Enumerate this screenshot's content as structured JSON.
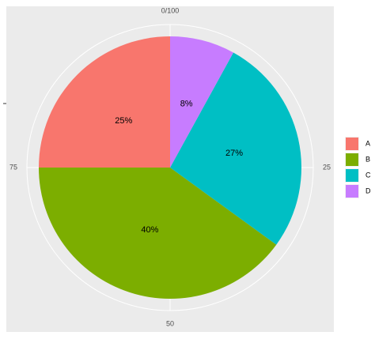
{
  "chart_data": {
    "type": "pie",
    "categories": [
      "A",
      "B",
      "C",
      "D"
    ],
    "values": [
      25,
      40,
      27,
      8
    ],
    "value_labels": [
      "25%",
      "40%",
      "27%",
      "8%"
    ],
    "colors": [
      "#F8766D",
      "#7CAE00",
      "#00BFC4",
      "#C77CFF"
    ],
    "theta_lim": [
      0,
      100
    ],
    "theta_ticks": [
      {
        "value": 0,
        "label": "0/100"
      },
      25,
      50,
      75
    ],
    "grid": true,
    "legend": "right"
  }
}
